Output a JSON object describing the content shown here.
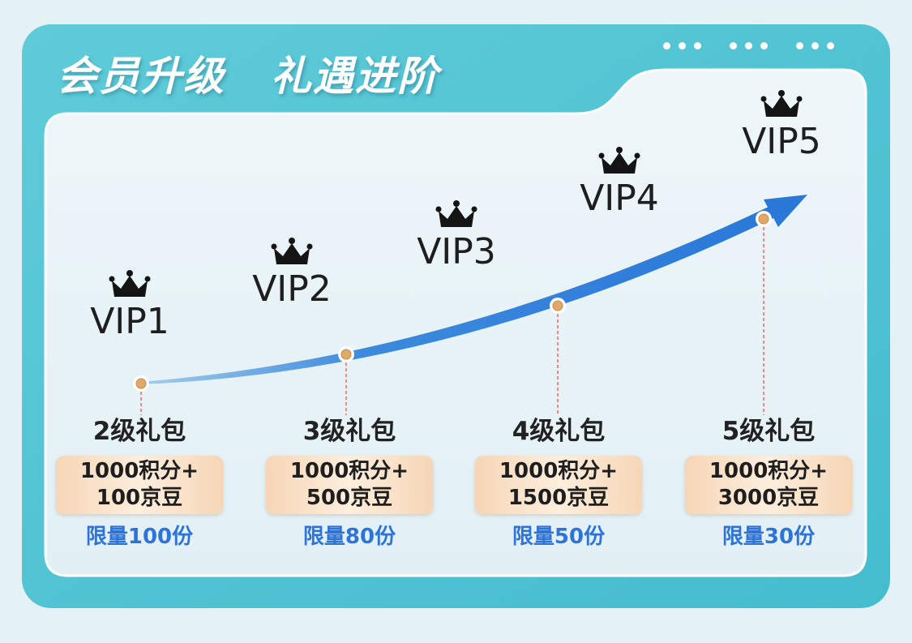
{
  "banner": {
    "title_left": "会员升级",
    "title_right": "礼遇进阶"
  },
  "colors": {
    "outer_panel": "#4ec3d3",
    "inner_panel": "#eaf4f8",
    "arrow": "#2f7fdb",
    "crown": "#141414",
    "vip_text": "#1e1e1e",
    "tier_text": "#222222",
    "limit_text": "#2d73d8",
    "reward_box": "#f8dcc0"
  },
  "levels": [
    {
      "label": "VIP1",
      "icon": "crown-icon"
    },
    {
      "label": "VIP2",
      "icon": "crown-icon"
    },
    {
      "label": "VIP3",
      "icon": "crown-icon"
    },
    {
      "label": "VIP4",
      "icon": "crown-icon"
    },
    {
      "label": "VIP5",
      "icon": "crown-icon"
    }
  ],
  "tiers": [
    {
      "name": "2级礼包",
      "reward_line1": "1000积分+",
      "reward_line2": "100京豆",
      "limit": "限量100份"
    },
    {
      "name": "3级礼包",
      "reward_line1": "1000积分+",
      "reward_line2": "500京豆",
      "limit": "限量80份"
    },
    {
      "name": "4级礼包",
      "reward_line1": "1000积分+",
      "reward_line2": "1500京豆",
      "limit": "限量50份"
    },
    {
      "name": "5级礼包",
      "reward_line1": "1000积分+",
      "reward_line2": "3000京豆",
      "limit": "限量30份"
    }
  ]
}
